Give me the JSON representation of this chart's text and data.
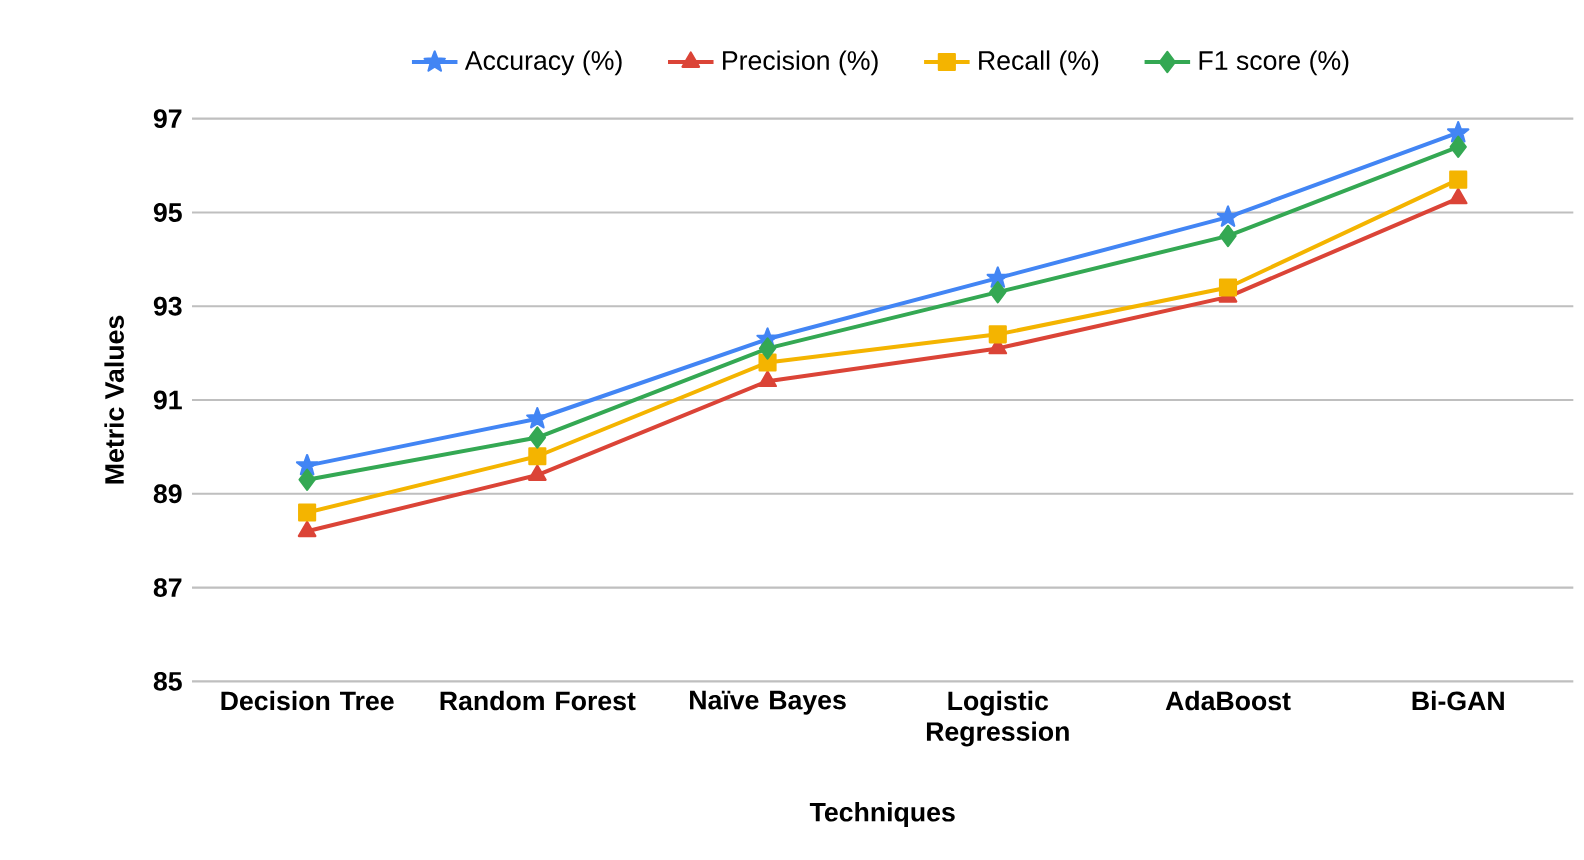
{
  "chart_data": {
    "type": "line",
    "xlabel": "Techniques",
    "ylabel": "Metric Values",
    "categories": [
      "Decision Tree",
      "Random Forest",
      "Naïve Bayes",
      "Logistic Regression",
      "AdaBoost",
      "Bi-GAN"
    ],
    "series": [
      {
        "name": "Accuracy (%)",
        "color": "#4285f4",
        "marker": "star",
        "values": [
          89.6,
          90.6,
          92.3,
          93.6,
          94.9,
          96.7
        ]
      },
      {
        "name": "Precision (%)",
        "color": "#db4437",
        "marker": "triangle",
        "values": [
          88.2,
          89.4,
          91.4,
          92.1,
          93.2,
          95.3
        ]
      },
      {
        "name": "Recall (%)",
        "color": "#f4b400",
        "marker": "square",
        "values": [
          88.6,
          89.8,
          91.8,
          92.4,
          93.4,
          95.7
        ]
      },
      {
        "name": "F1 score (%)",
        "color": "#34a853",
        "marker": "diamond",
        "values": [
          89.3,
          90.2,
          92.1,
          93.3,
          94.5,
          96.4
        ]
      }
    ],
    "ylim": [
      85,
      97
    ],
    "yticks": [
      85,
      87,
      89,
      91,
      93,
      95,
      97
    ],
    "grid": "y",
    "legend": "top",
    "line_style": "solid"
  }
}
